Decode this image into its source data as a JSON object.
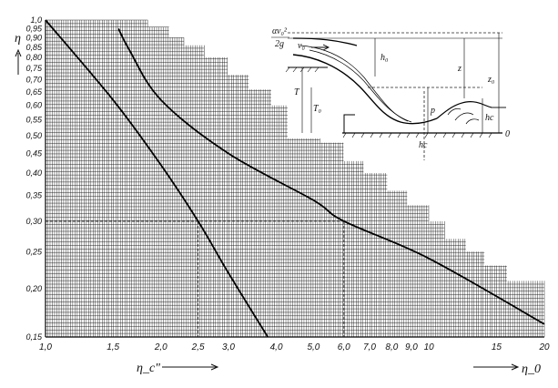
{
  "chart_data": {
    "type": "line",
    "title": "",
    "ylabel": "η",
    "xlabel_left": "η_c\"",
    "xlabel_right": "η_0",
    "x_scale": "log",
    "y_scale": "log",
    "xlim": [
      1.0,
      20.0
    ],
    "ylim": [
      0.15,
      1.0
    ],
    "y_ticks": [
      "1,0",
      "0,95",
      "0,90",
      "0,85",
      "0,80",
      "0,75",
      "0,70",
      "0,65",
      "0,60",
      "0,55",
      "0,50",
      "0,45",
      "0,40",
      "0,35",
      "0,30",
      "0,25",
      "0,20",
      "0,15"
    ],
    "y_tick_values": [
      1.0,
      0.95,
      0.9,
      0.85,
      0.8,
      0.75,
      0.7,
      0.65,
      0.6,
      0.55,
      0.5,
      0.45,
      0.4,
      0.35,
      0.3,
      0.25,
      0.2,
      0.15
    ],
    "x_ticks": [
      "1,0",
      "1,5",
      "2,0",
      "2,5",
      "3,0",
      "4,0",
      "5,0",
      "6,0",
      "7,0",
      "8,0",
      "9,0",
      "10",
      "15",
      "20"
    ],
    "x_tick_values": [
      1.0,
      1.5,
      2.0,
      2.5,
      3.0,
      4.0,
      5.0,
      6.0,
      7.0,
      8.0,
      9.0,
      10,
      15,
      20
    ],
    "grid": true,
    "series": [
      {
        "x": [
          1.0,
          1.5,
          2.0,
          2.5,
          3.0,
          3.8
        ],
        "y": [
          1.0,
          0.62,
          0.42,
          0.3,
          0.22,
          0.15
        ]
      },
      {
        "x": [
          1.55,
          1.65,
          2.0,
          3.0,
          5.0,
          6.0,
          10.0,
          20.0
        ],
        "y": [
          0.95,
          0.84,
          0.62,
          0.45,
          0.34,
          0.3,
          0.24,
          0.162
        ]
      }
    ],
    "reference_lines": [
      {
        "x": 2.5,
        "y": 0.3
      },
      {
        "x": 6.0,
        "y": 0.3
      }
    ]
  },
  "inset": {
    "labels": {
      "velocity_head_alpha": "α",
      "velocity_head_v": "v₀²",
      "velocity_head_2g": "2g",
      "v0": "v₀",
      "h0": "h₀",
      "z": "z",
      "z0": "z₀",
      "T": "T",
      "T0": "T₀",
      "p": "p",
      "hc_right": "hc",
      "hc_bottom": "hc",
      "datum": "0"
    }
  }
}
